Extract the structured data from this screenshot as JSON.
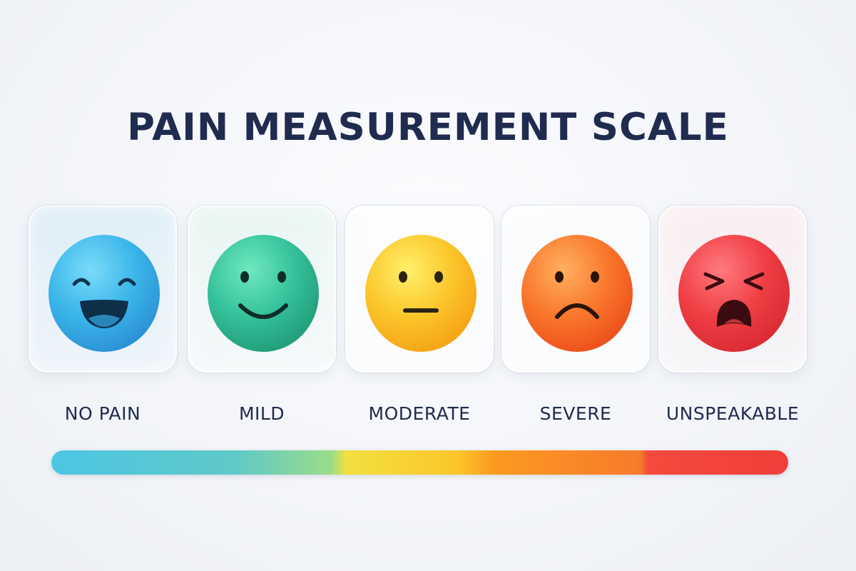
{
  "title": "PAIN MEASUREMENT SCALE",
  "levels": [
    {
      "label": "NO PAIN",
      "icon": "laughing-face-icon",
      "color": "#3fb3e6"
    },
    {
      "label": "MILD",
      "icon": "smiling-face-icon",
      "color": "#34c199"
    },
    {
      "label": "MODERATE",
      "icon": "neutral-face-icon",
      "color": "#fbc52a"
    },
    {
      "label": "SEVERE",
      "icon": "frowning-face-icon",
      "color": "#f9762a"
    },
    {
      "label": "UNSPEAKABLE",
      "icon": "anguished-face-icon",
      "color": "#ef3e44"
    }
  ],
  "pain_bar": {
    "colors": [
      "#4cc6e4",
      "#9bdc8a",
      "#f2e040",
      "#fb9a1f",
      "#f23e3a"
    ],
    "fill_fraction": 1.0
  }
}
